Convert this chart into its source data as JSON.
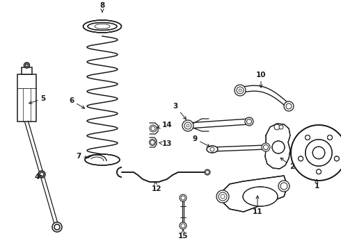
{
  "bg_color": "#ffffff",
  "line_color": "#1a1a1a",
  "lw": 1.1,
  "figsize": [
    4.9,
    3.6
  ],
  "dpi": 100
}
